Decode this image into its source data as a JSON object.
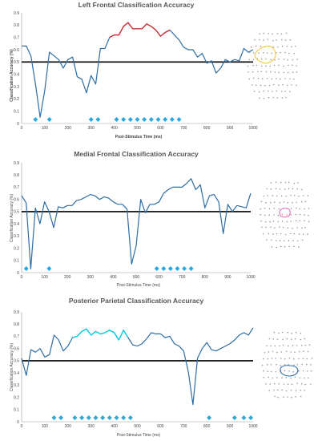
{
  "chart_data": [
    {
      "type": "line",
      "title": "Left Frontal Classification Accuracy",
      "xlabel": "Post-Stimulus Time (ms)",
      "ylabel": "Classification Accuracy (%)",
      "xlim": [
        0,
        1000
      ],
      "ylim": [
        0,
        0.9
      ],
      "xticks": [
        0,
        100,
        200,
        300,
        400,
        500,
        600,
        700,
        800,
        900,
        1000
      ],
      "yticks": [
        0,
        0.1,
        0.2,
        0.3,
        0.4,
        0.5,
        0.6,
        0.7,
        0.8,
        0.9
      ],
      "chance_level": 0.5,
      "colors": {
        "line": "#2e6da4",
        "highlight": "#d62728",
        "marker": "#29a8e0",
        "chance": "#000000",
        "outline": "#f2c94c"
      },
      "x": [
        0,
        20,
        40,
        60,
        80,
        100,
        120,
        140,
        160,
        180,
        200,
        220,
        240,
        260,
        280,
        300,
        320,
        340,
        360,
        380,
        400,
        420,
        440,
        460,
        480,
        500,
        520,
        540,
        560,
        580,
        600,
        620,
        640,
        660,
        680,
        700,
        720,
        740,
        760,
        780,
        800,
        820,
        840,
        860,
        880,
        900,
        920,
        940,
        960,
        980,
        1000
      ],
      "values": [
        0.63,
        0.63,
        0.55,
        0.32,
        0.05,
        0.27,
        0.58,
        0.55,
        0.52,
        0.45,
        0.52,
        0.54,
        0.38,
        0.36,
        0.25,
        0.39,
        0.32,
        0.61,
        0.61,
        0.7,
        0.72,
        0.72,
        0.79,
        0.82,
        0.77,
        0.77,
        0.77,
        0.81,
        0.79,
        0.76,
        0.71,
        0.74,
        0.76,
        0.72,
        0.68,
        0.62,
        0.6,
        0.6,
        0.54,
        0.57,
        0.49,
        0.51,
        0.41,
        0.45,
        0.52,
        0.5,
        0.52,
        0.51,
        0.61,
        0.58,
        0.6
      ],
      "highlight_range": [
        380,
        640
      ],
      "significant_times": [
        60,
        120,
        300,
        330,
        410,
        440,
        470,
        500,
        530,
        560,
        590,
        620,
        650,
        680
      ]
    },
    {
      "type": "line",
      "title": "Medial Frontal Classification Accuracy",
      "xlabel": "Post-Stimulus Time (ms)",
      "ylabel": "Classification Accuracy (%)",
      "xlim": [
        0,
        1000
      ],
      "ylim": [
        0,
        0.9
      ],
      "xticks": [
        0,
        100,
        200,
        300,
        400,
        500,
        600,
        700,
        800,
        900,
        1000
      ],
      "yticks": [
        0,
        0.1,
        0.2,
        0.3,
        0.4,
        0.5,
        0.6,
        0.7,
        0.8,
        0.9
      ],
      "chance_level": 0.5,
      "colors": {
        "line": "#2e6da4",
        "marker": "#29a8e0",
        "chance": "#000000",
        "outline": "#e377c2"
      },
      "x": [
        0,
        20,
        40,
        60,
        80,
        100,
        120,
        140,
        160,
        180,
        200,
        220,
        240,
        260,
        280,
        300,
        320,
        340,
        360,
        380,
        400,
        420,
        440,
        460,
        480,
        500,
        520,
        540,
        560,
        580,
        600,
        620,
        640,
        660,
        680,
        700,
        720,
        740,
        760,
        780,
        800,
        820,
        840,
        860,
        880,
        900,
        920,
        940,
        960,
        980,
        1000
      ],
      "values": [
        0.63,
        0.57,
        0.03,
        0.53,
        0.4,
        0.58,
        0.5,
        0.37,
        0.54,
        0.53,
        0.55,
        0.55,
        0.59,
        0.6,
        0.62,
        0.64,
        0.63,
        0.6,
        0.62,
        0.61,
        0.58,
        0.56,
        0.56,
        0.52,
        0.07,
        0.22,
        0.6,
        0.49,
        0.56,
        0.56,
        0.58,
        0.65,
        0.68,
        0.7,
        0.7,
        0.7,
        0.73,
        0.77,
        0.68,
        0.72,
        0.53,
        0.63,
        0.64,
        0.58,
        0.32,
        0.56,
        0.5,
        0.55,
        0.54,
        0.53,
        0.65
      ],
      "significant_times": [
        20,
        120,
        590,
        620,
        650,
        680,
        710,
        740
      ]
    },
    {
      "type": "line",
      "title": "Posterior Parietal Classification Accuracy",
      "xlabel": "Post-Stimulus Time (ms)",
      "ylabel": "Classification Accuracy (%)",
      "xlim": [
        0,
        1000
      ],
      "ylim": [
        0,
        0.9
      ],
      "xticks": [
        0,
        100,
        200,
        300,
        400,
        500,
        600,
        700,
        800,
        900,
        1000
      ],
      "yticks": [
        0,
        0.1,
        0.2,
        0.3,
        0.4,
        0.5,
        0.6,
        0.7,
        0.8,
        0.9
      ],
      "chance_level": 0.5,
      "colors": {
        "line": "#2e6da4",
        "highlight": "#00d2e6",
        "marker": "#29a8e0",
        "chance": "#000000",
        "outline": "#2e6da4"
      },
      "x": [
        0,
        20,
        40,
        60,
        80,
        100,
        120,
        140,
        160,
        180,
        200,
        220,
        240,
        260,
        280,
        300,
        320,
        340,
        360,
        380,
        400,
        420,
        440,
        460,
        480,
        500,
        520,
        540,
        560,
        580,
        600,
        620,
        640,
        660,
        680,
        700,
        720,
        740,
        760,
        780,
        800,
        820,
        840,
        860,
        880,
        900,
        920,
        940,
        960,
        980,
        1000
      ],
      "values": [
        0.52,
        0.38,
        0.59,
        0.57,
        0.6,
        0.53,
        0.55,
        0.71,
        0.67,
        0.58,
        0.62,
        0.69,
        0.7,
        0.74,
        0.76,
        0.71,
        0.74,
        0.72,
        0.73,
        0.75,
        0.73,
        0.67,
        0.75,
        0.69,
        0.63,
        0.62,
        0.64,
        0.68,
        0.73,
        0.72,
        0.72,
        0.69,
        0.7,
        0.64,
        0.62,
        0.58,
        0.41,
        0.14,
        0.52,
        0.6,
        0.65,
        0.59,
        0.58,
        0.6,
        0.62,
        0.64,
        0.67,
        0.71,
        0.73,
        0.71,
        0.77
      ],
      "highlight_range": [
        220,
        470
      ],
      "significant_times": [
        140,
        170,
        230,
        260,
        290,
        320,
        350,
        380,
        410,
        440,
        470,
        810,
        920,
        960,
        990
      ]
    }
  ]
}
